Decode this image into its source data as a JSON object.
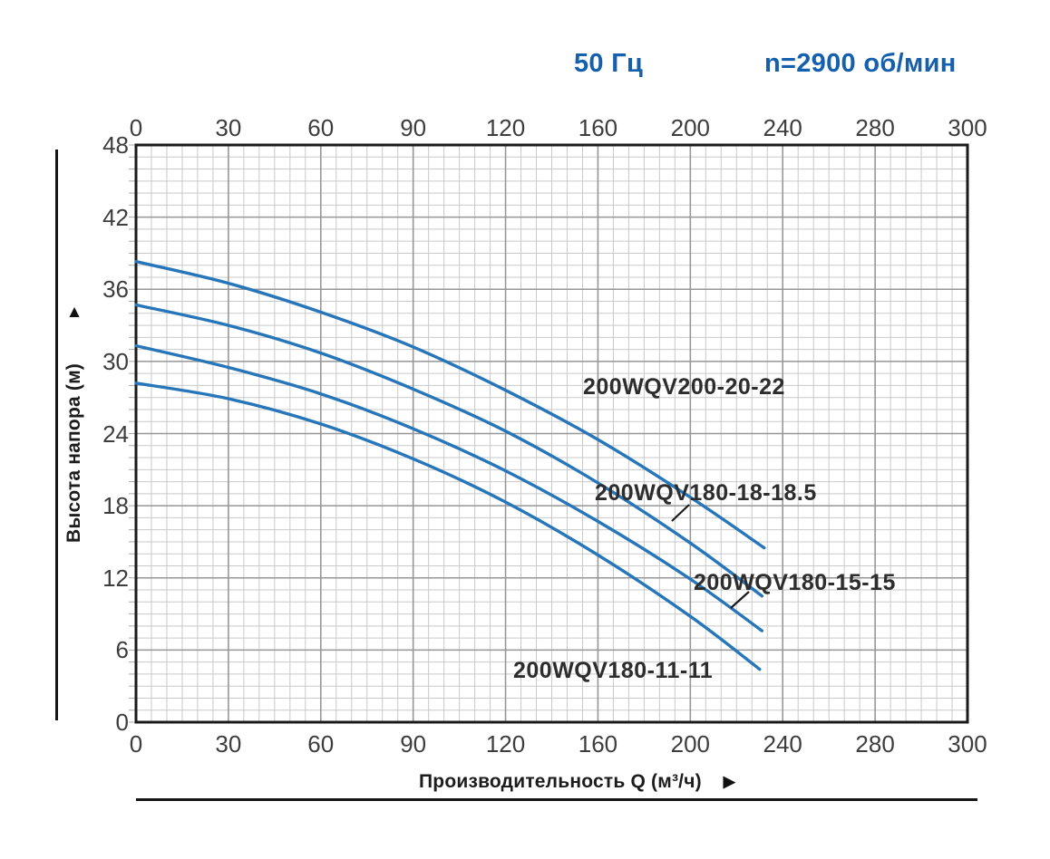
{
  "header": {
    "frequency": "50 Гц",
    "speed": "n=2900 об/мин",
    "accent_color": "#1560ae"
  },
  "icons": {
    "y_axis_arrow": "▲",
    "x_axis_arrow": "▶"
  },
  "chart_data": {
    "type": "line",
    "title": "",
    "xlabel": "Производительность Q (м³/ч)",
    "ylabel": "Высота напора (м)",
    "x_ticks": [
      0,
      30,
      60,
      90,
      120,
      160,
      200,
      240,
      280,
      300
    ],
    "y_ticks": [
      0,
      6,
      12,
      18,
      24,
      30,
      36,
      42,
      48
    ],
    "xlim": [
      0,
      300
    ],
    "ylim": [
      0,
      48
    ],
    "grid": "minor and major gridlines on",
    "legend_position": "labels next to curves",
    "curve_color": "#2776b9",
    "series": [
      {
        "name": "200WQV200-20-22",
        "points": [
          [
            0,
            38.3
          ],
          [
            30,
            36.5
          ],
          [
            60,
            34.1
          ],
          [
            90,
            31.2
          ],
          [
            120,
            27.6
          ],
          [
            160,
            23.5
          ],
          [
            200,
            18.7
          ],
          [
            232,
            14.5
          ]
        ]
      },
      {
        "name": "200WQV180-18-18.5",
        "points": [
          [
            0,
            34.7
          ],
          [
            30,
            33.0
          ],
          [
            60,
            30.7
          ],
          [
            90,
            27.7
          ],
          [
            120,
            24.2
          ],
          [
            160,
            19.9
          ],
          [
            200,
            14.9
          ],
          [
            231,
            10.5
          ]
        ]
      },
      {
        "name": "200WQV180-15-15",
        "points": [
          [
            0,
            31.3
          ],
          [
            30,
            29.5
          ],
          [
            60,
            27.3
          ],
          [
            90,
            24.4
          ],
          [
            120,
            20.9
          ],
          [
            160,
            16.7
          ],
          [
            200,
            11.9
          ],
          [
            231,
            7.6
          ]
        ]
      },
      {
        "name": "200WQV180-11-11",
        "points": [
          [
            0,
            28.2
          ],
          [
            30,
            26.9
          ],
          [
            60,
            24.8
          ],
          [
            90,
            21.9
          ],
          [
            120,
            18.3
          ],
          [
            160,
            13.9
          ],
          [
            200,
            8.8
          ],
          [
            230,
            4.4
          ]
        ]
      }
    ]
  }
}
